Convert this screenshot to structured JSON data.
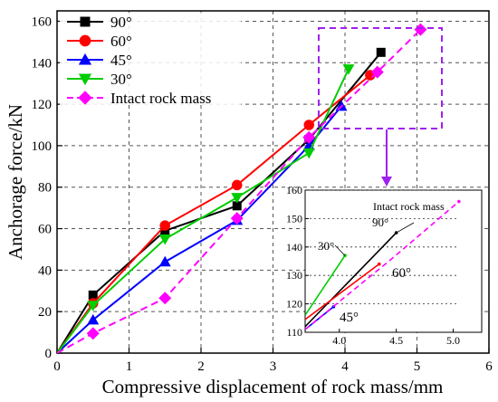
{
  "chart_data": [
    {
      "type": "line",
      "xlabel": "Compressive displacement of rock mass/mm",
      "ylabel": "Anchorage force/kN",
      "xlim": [
        0,
        6
      ],
      "ylim": [
        0,
        165
      ],
      "xticks": [
        0,
        1,
        2,
        3,
        4,
        5,
        6
      ],
      "yticks": [
        0,
        20,
        40,
        60,
        80,
        100,
        120,
        140,
        160
      ],
      "grid": "dashed",
      "legend": "top-left",
      "series": [
        {
          "name": "90°",
          "color": "#000000",
          "marker": "square",
          "x": [
            0,
            0.5,
            1.5,
            2.5,
            3.5,
            4.5
          ],
          "y": [
            0,
            28,
            59,
            71,
            103,
            145
          ]
        },
        {
          "name": "60°",
          "color": "#ff0000",
          "marker": "circle",
          "x": [
            0,
            0.5,
            1.5,
            2.5,
            3.5,
            4.35
          ],
          "y": [
            0,
            24,
            61.5,
            81,
            110,
            134
          ]
        },
        {
          "name": "45°",
          "color": "#0000ff",
          "marker": "triangle-up",
          "x": [
            0,
            0.5,
            1.5,
            2.5,
            3.5,
            3.95
          ],
          "y": [
            0,
            16,
            44,
            64,
            100,
            119
          ]
        },
        {
          "name": "30°",
          "color": "#00cc00",
          "marker": "triangle-down",
          "x": [
            0,
            0.5,
            1.5,
            2.5,
            3.5,
            4.05
          ],
          "y": [
            0,
            23,
            55,
            75,
            96.5,
            137
          ]
        },
        {
          "name": "Intact rock mass",
          "color": "#ff00ff",
          "marker": "diamond",
          "dash": true,
          "x": [
            0,
            0.5,
            1.5,
            2.5,
            3.5,
            4.45,
            5.05
          ],
          "y": [
            0,
            9.5,
            26.5,
            65,
            104,
            135.5,
            156
          ]
        }
      ]
    },
    {
      "type": "line",
      "xlim": [
        3.7,
        5.25
      ],
      "ylim": [
        110,
        160
      ],
      "xticks": [
        "4.0",
        "4.5",
        "5.0"
      ],
      "yticks": [
        110,
        120,
        130,
        140,
        150,
        160
      ],
      "annotations": [
        "Intact rock mass",
        "90°",
        "30°",
        "60°",
        "45°"
      ],
      "series": [
        {
          "name": "90°",
          "color": "#000000",
          "x": [
            3.7,
            4.5
          ],
          "y": [
            112,
            145
          ]
        },
        {
          "name": "60°",
          "color": "#ff0000",
          "x": [
            3.7,
            4.35
          ],
          "y": [
            114.5,
            134
          ]
        },
        {
          "name": "45°",
          "color": "#0000ff",
          "x": [
            3.7,
            3.95
          ],
          "y": [
            111,
            119
          ]
        },
        {
          "name": "30°",
          "color": "#00cc00",
          "x": [
            3.7,
            4.05
          ],
          "y": [
            116,
            137
          ]
        },
        {
          "name": "Intact rock mass",
          "color": "#ff00ff",
          "dash": true,
          "x": [
            3.7,
            4.45,
            5.05
          ],
          "y": [
            111,
            135.5,
            156
          ]
        }
      ]
    }
  ]
}
